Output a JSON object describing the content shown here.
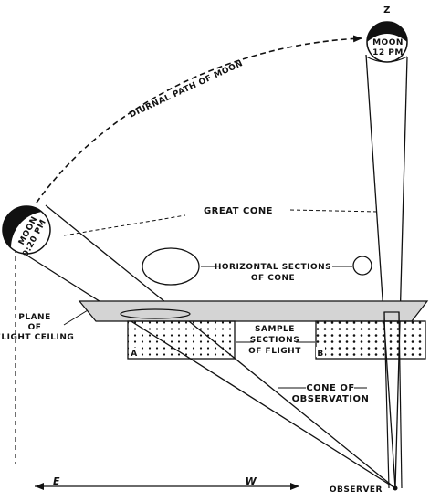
{
  "labels": {
    "zenith": "Z",
    "moon_12_line1": "MOON",
    "moon_12_line2": "12 PM",
    "moon_920_line1": "MOON",
    "moon_920_line2": "9:20 PM",
    "diurnal_path": "DIURNAL PATH OF MOON",
    "great_cone": "GREAT CONE",
    "horizontal_line1": "HORIZONTAL SECTIONS",
    "horizontal_line2": "OF CONE",
    "plane_line1": "PLANE",
    "plane_line2": "OF",
    "plane_line3": "FLIGHT CEILING",
    "sample_line1": "SAMPLE",
    "sample_line2": "SECTIONS",
    "sample_line3": "OF FLIGHT",
    "section_a": "A",
    "section_b": "B",
    "cone_obs_line1": "CONE OF",
    "cone_obs_line2": "OBSERVATION",
    "east": "E",
    "west": "W",
    "observer": "OBSERVER"
  }
}
